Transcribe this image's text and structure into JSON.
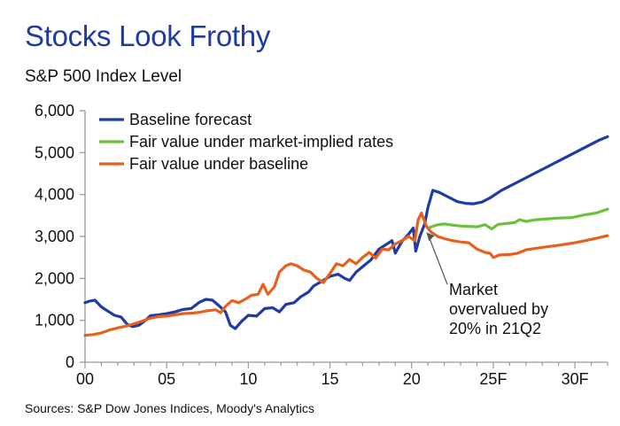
{
  "chart_data": {
    "type": "line",
    "title": "Stocks Look Frothy",
    "ylabel": "S&P 500 Index Level",
    "xlabel": "",
    "source": "Sources: S&P Dow Jones Indices, Moody's Analytics",
    "xlim": [
      2000,
      2032
    ],
    "ylim": [
      0,
      6000
    ],
    "yticks": [
      0,
      1000,
      2000,
      3000,
      4000,
      5000,
      6000
    ],
    "ytick_labels": [
      "0",
      "1,000",
      "2,000",
      "3,000",
      "4,000",
      "5,000",
      "6,000"
    ],
    "xticks": [
      2000,
      2005,
      2010,
      2015,
      2020,
      2025,
      2030
    ],
    "xtick_labels": [
      "00",
      "05",
      "10",
      "15",
      "20",
      "25F",
      "30F"
    ],
    "annotation": {
      "lines": [
        "Market",
        "overvalued by",
        "20% in 21Q2"
      ],
      "x": 2020.9,
      "y": 3100
    },
    "series": [
      {
        "name": "Baseline forecast",
        "color": "#1f3ba8",
        "points": [
          [
            2000.0,
            1420
          ],
          [
            2000.3,
            1460
          ],
          [
            2000.6,
            1480
          ],
          [
            2001.0,
            1320
          ],
          [
            2001.4,
            1220
          ],
          [
            2001.8,
            1120
          ],
          [
            2002.2,
            1080
          ],
          [
            2002.6,
            900
          ],
          [
            2002.9,
            850
          ],
          [
            2003.3,
            880
          ],
          [
            2003.7,
            1000
          ],
          [
            2004.0,
            1110
          ],
          [
            2004.5,
            1130
          ],
          [
            2005.0,
            1160
          ],
          [
            2005.5,
            1200
          ],
          [
            2006.0,
            1260
          ],
          [
            2006.5,
            1280
          ],
          [
            2007.0,
            1430
          ],
          [
            2007.4,
            1500
          ],
          [
            2007.8,
            1480
          ],
          [
            2008.2,
            1350
          ],
          [
            2008.6,
            1200
          ],
          [
            2008.9,
            880
          ],
          [
            2009.2,
            800
          ],
          [
            2009.6,
            980
          ],
          [
            2010.0,
            1120
          ],
          [
            2010.5,
            1100
          ],
          [
            2011.0,
            1280
          ],
          [
            2011.5,
            1300
          ],
          [
            2011.9,
            1200
          ],
          [
            2012.3,
            1380
          ],
          [
            2012.8,
            1420
          ],
          [
            2013.2,
            1560
          ],
          [
            2013.7,
            1680
          ],
          [
            2014.0,
            1820
          ],
          [
            2014.5,
            1930
          ],
          [
            2015.0,
            2050
          ],
          [
            2015.5,
            2100
          ],
          [
            2015.9,
            2000
          ],
          [
            2016.2,
            1950
          ],
          [
            2016.6,
            2150
          ],
          [
            2017.0,
            2280
          ],
          [
            2017.5,
            2440
          ],
          [
            2018.0,
            2700
          ],
          [
            2018.4,
            2800
          ],
          [
            2018.8,
            2900
          ],
          [
            2019.0,
            2600
          ],
          [
            2019.4,
            2880
          ],
          [
            2019.8,
            3050
          ],
          [
            2020.1,
            3200
          ],
          [
            2020.25,
            2650
          ],
          [
            2020.5,
            3000
          ],
          [
            2020.8,
            3300
          ],
          [
            2021.0,
            3700
          ],
          [
            2021.3,
            4100
          ],
          [
            2021.7,
            4050
          ],
          [
            2022.2,
            3950
          ],
          [
            2022.8,
            3830
          ],
          [
            2023.3,
            3790
          ],
          [
            2023.8,
            3780
          ],
          [
            2024.3,
            3820
          ],
          [
            2024.8,
            3920
          ],
          [
            2025.5,
            4100
          ],
          [
            2026.5,
            4300
          ],
          [
            2027.5,
            4500
          ],
          [
            2028.5,
            4700
          ],
          [
            2029.5,
            4900
          ],
          [
            2030.5,
            5100
          ],
          [
            2031.5,
            5300
          ],
          [
            2032.0,
            5380
          ]
        ]
      },
      {
        "name": "Fair value under market-implied rates",
        "color": "#6bc13b",
        "points": [
          [
            2021.0,
            3200
          ],
          [
            2021.5,
            3270
          ],
          [
            2022.0,
            3300
          ],
          [
            2022.5,
            3270
          ],
          [
            2023.0,
            3250
          ],
          [
            2023.5,
            3240
          ],
          [
            2024.0,
            3230
          ],
          [
            2024.5,
            3280
          ],
          [
            2024.9,
            3180
          ],
          [
            2025.3,
            3290
          ],
          [
            2025.8,
            3310
          ],
          [
            2026.3,
            3330
          ],
          [
            2026.6,
            3400
          ],
          [
            2027.0,
            3360
          ],
          [
            2027.6,
            3400
          ],
          [
            2028.3,
            3420
          ],
          [
            2029.0,
            3440
          ],
          [
            2029.8,
            3450
          ],
          [
            2030.5,
            3510
          ],
          [
            2031.3,
            3560
          ],
          [
            2032.0,
            3650
          ]
        ]
      },
      {
        "name": "Fair value under baseline",
        "color": "#e8611c",
        "points": [
          [
            2000.0,
            640
          ],
          [
            2000.5,
            660
          ],
          [
            2001.0,
            700
          ],
          [
            2001.5,
            770
          ],
          [
            2002.0,
            820
          ],
          [
            2002.5,
            860
          ],
          [
            2003.0,
            920
          ],
          [
            2003.5,
            980
          ],
          [
            2004.0,
            1050
          ],
          [
            2004.5,
            1090
          ],
          [
            2005.0,
            1100
          ],
          [
            2005.5,
            1130
          ],
          [
            2006.0,
            1160
          ],
          [
            2006.5,
            1170
          ],
          [
            2007.0,
            1190
          ],
          [
            2007.5,
            1230
          ],
          [
            2008.0,
            1250
          ],
          [
            2008.3,
            1180
          ],
          [
            2008.6,
            1330
          ],
          [
            2009.0,
            1470
          ],
          [
            2009.4,
            1420
          ],
          [
            2009.8,
            1500
          ],
          [
            2010.2,
            1600
          ],
          [
            2010.6,
            1620
          ],
          [
            2010.9,
            1860
          ],
          [
            2011.2,
            1620
          ],
          [
            2011.6,
            1800
          ],
          [
            2011.9,
            2150
          ],
          [
            2012.3,
            2300
          ],
          [
            2012.6,
            2350
          ],
          [
            2013.0,
            2300
          ],
          [
            2013.4,
            2200
          ],
          [
            2013.8,
            2150
          ],
          [
            2014.2,
            2000
          ],
          [
            2014.6,
            1900
          ],
          [
            2015.0,
            2120
          ],
          [
            2015.4,
            2350
          ],
          [
            2015.8,
            2300
          ],
          [
            2016.2,
            2450
          ],
          [
            2016.6,
            2350
          ],
          [
            2017.0,
            2500
          ],
          [
            2017.4,
            2620
          ],
          [
            2017.8,
            2480
          ],
          [
            2018.2,
            2700
          ],
          [
            2018.6,
            2680
          ],
          [
            2019.0,
            2820
          ],
          [
            2019.4,
            2900
          ],
          [
            2019.8,
            3000
          ],
          [
            2020.2,
            2900
          ],
          [
            2020.4,
            3400
          ],
          [
            2020.6,
            3560
          ],
          [
            2020.9,
            3250
          ],
          [
            2021.2,
            3100
          ],
          [
            2021.6,
            3000
          ],
          [
            2022.0,
            2950
          ],
          [
            2022.5,
            2900
          ],
          [
            2023.0,
            2870
          ],
          [
            2023.5,
            2850
          ],
          [
            2024.0,
            2700
          ],
          [
            2024.5,
            2620
          ],
          [
            2024.8,
            2600
          ],
          [
            2025.0,
            2500
          ],
          [
            2025.4,
            2560
          ],
          [
            2026.0,
            2570
          ],
          [
            2026.5,
            2600
          ],
          [
            2027.0,
            2680
          ],
          [
            2028.0,
            2740
          ],
          [
            2029.0,
            2790
          ],
          [
            2030.0,
            2850
          ],
          [
            2031.0,
            2930
          ],
          [
            2032.0,
            3020
          ]
        ]
      }
    ]
  }
}
